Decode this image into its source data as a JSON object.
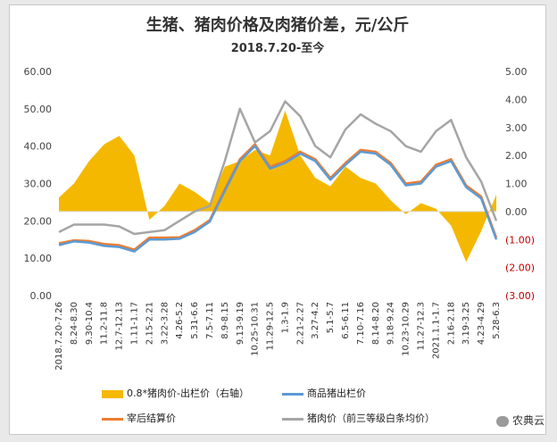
{
  "chart_data": {
    "type": "area",
    "title": "生猪、猪肉价格及肉猪价差，元/公斤",
    "subtitle": "2018.7.20-至今",
    "ylim_left": [
      0,
      60
    ],
    "ylim_right": [
      -3,
      5
    ],
    "left_ticks": [
      "0.00",
      "10.00",
      "20.00",
      "30.00",
      "40.00",
      "50.00",
      "60.00"
    ],
    "right_ticks": [
      "(3.00)",
      "(2.00)",
      "(1.00)",
      "0.00",
      "1.00",
      "2.00",
      "3.00",
      "4.00",
      "5.00"
    ],
    "categories": [
      "2018.7.20-7.26",
      "8.24-8.30",
      "9.30-10.4",
      "11.2-11.8",
      "12.7-12.13",
      "1.11-1.17",
      "2.15-2.21",
      "3.22-3.28",
      "4.26-5.2",
      "5.31-6.6",
      "7.5-7.11",
      "8.9-8.15",
      "9.13-9.19",
      "10.25-10.31",
      "11.29-12.5",
      "1.3-1.9",
      "2.21-2.27",
      "3.27-4.2",
      "5.1-5.7",
      "6.5-6.11",
      "7.10-7.16",
      "8.14-8.20",
      "9.18-9.24",
      "10.23-10.29",
      "11.27-12.3",
      "2021.1.1-1.7",
      "2.16-2.18",
      "3.19-3.25",
      "4.23-4.29",
      "5.28-6.3"
    ],
    "series": [
      {
        "name": "0.8*猪肉价-出栏价（右轴）",
        "axis": "right",
        "type": "area",
        "color": "#f5b800",
        "values": [
          0.5,
          1.0,
          1.8,
          2.4,
          2.7,
          2.0,
          -0.3,
          0.2,
          1.0,
          0.7,
          0.3,
          1.6,
          1.8,
          2.2,
          2.0,
          3.6,
          2.0,
          1.2,
          0.9,
          1.6,
          1.2,
          1.0,
          0.4,
          -0.1,
          0.3,
          0.1,
          -0.5,
          -1.8,
          -0.7,
          0.6
        ]
      },
      {
        "name": "商品猪出栏价",
        "axis": "left",
        "type": "line",
        "color": "#5b9bd5",
        "values": [
          13.5,
          14.5,
          14.2,
          13.3,
          13.0,
          11.8,
          15.0,
          15.0,
          15.2,
          17.0,
          19.8,
          28.0,
          36.0,
          40.0,
          34.0,
          35.5,
          38.0,
          36.0,
          31.0,
          35.0,
          38.5,
          38.0,
          35.0,
          29.5,
          30.0,
          34.5,
          36.0,
          29.0,
          26.0,
          15.0
        ]
      },
      {
        "name": "宰后结算价",
        "axis": "left",
        "type": "line",
        "color": "#ed7d31",
        "values": [
          14.0,
          14.8,
          14.6,
          13.8,
          13.5,
          12.3,
          15.5,
          15.5,
          15.6,
          17.5,
          20.2,
          28.5,
          36.5,
          40.5,
          34.5,
          36.0,
          38.5,
          36.5,
          31.5,
          35.5,
          39.0,
          38.5,
          35.5,
          30.0,
          30.5,
          35.0,
          36.5,
          29.5,
          26.5,
          15.5
        ]
      },
      {
        "name": "猪肉价（前三等级白条均价）",
        "axis": "left",
        "type": "line",
        "color": "#a5a5a5",
        "values": [
          17.0,
          19.0,
          19.0,
          19.0,
          18.5,
          16.5,
          17.0,
          17.5,
          20.0,
          22.5,
          24.0,
          36.0,
          50.0,
          41.0,
          44.0,
          52.0,
          48.0,
          40.0,
          37.0,
          44.5,
          48.5,
          46.0,
          44.0,
          40.0,
          38.5,
          44.0,
          47.0,
          37.0,
          30.5,
          20.0
        ]
      }
    ],
    "legend_position": "bottom",
    "grid": false
  },
  "watermark": "农典云"
}
